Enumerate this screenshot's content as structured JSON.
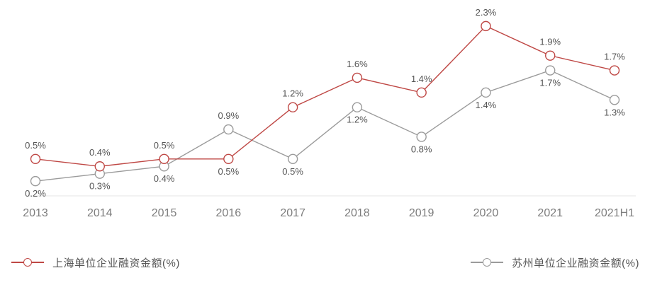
{
  "chart_data": {
    "type": "line",
    "categories": [
      "2013",
      "2014",
      "2015",
      "2016",
      "2017",
      "2018",
      "2019",
      "2020",
      "2021",
      "2021H1"
    ],
    "series": [
      {
        "name": "上海单位企业融资金额(%)",
        "color": "#bf4845",
        "values": [
          0.5,
          0.4,
          0.5,
          0.5,
          1.2,
          1.6,
          1.4,
          2.3,
          1.9,
          1.7
        ],
        "labels": [
          "0.5%",
          "0.4%",
          "0.5%",
          "0.5%",
          "1.2%",
          "1.6%",
          "1.4%",
          "2.3%",
          "1.9%",
          "1.7%"
        ],
        "label_pos": [
          "above",
          "above",
          "above",
          "below",
          "above",
          "above",
          "above",
          "above",
          "above",
          "above"
        ]
      },
      {
        "name": "苏州单位企业融资金额(%)",
        "color": "#9b9b9b",
        "values": [
          0.2,
          0.3,
          0.4,
          0.9,
          0.5,
          1.2,
          0.8,
          1.4,
          1.7,
          1.3
        ],
        "labels": [
          "0.2%",
          "0.3%",
          "0.4%",
          "0.9%",
          "0.5%",
          "1.2%",
          "0.8%",
          "1.4%",
          "1.7%",
          "1.3%"
        ],
        "label_pos": [
          "below",
          "below",
          "below",
          "above",
          "below",
          "below",
          "below",
          "below",
          "below",
          "below"
        ]
      }
    ],
    "value_suffix": "%",
    "ylim": [
      0,
      2.5
    ],
    "grid": false,
    "x_axis_line": true,
    "legend_position": "bottom"
  },
  "legend": {
    "items": [
      {
        "label": "上海单位企业融资金额(%)",
        "color": "#bf4845"
      },
      {
        "label": "苏州单位企业融资金额(%)",
        "color": "#9b9b9b"
      }
    ]
  },
  "colors": {
    "background": "#ffffff",
    "axis_line": "#e4e4e4",
    "value_label": "#555555",
    "tick_label": "#7d7d7d",
    "marker_fill": "#ffffff"
  }
}
